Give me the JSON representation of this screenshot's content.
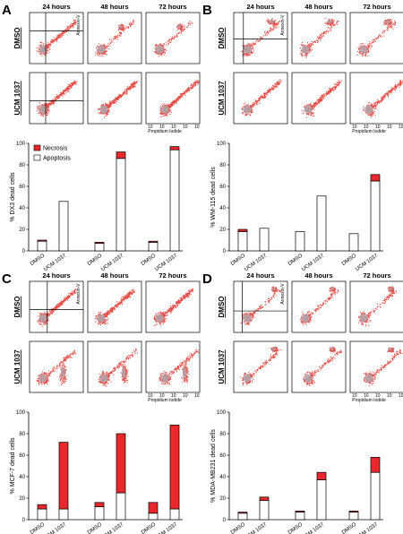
{
  "figure": {
    "time_labels": [
      "24 hours",
      "48 hours",
      "72 hours"
    ],
    "row_labels": [
      "DMSO",
      "UCM 1037"
    ],
    "flow_x_label": "Propidium Iodide",
    "flow_y_label": "Annexin-V",
    "flow_tick_labels": [
      "10",
      "10",
      "10",
      "10",
      "10"
    ],
    "legend": {
      "necrosis": "Necrosis",
      "apoptosis": "Apoptosis"
    },
    "colors": {
      "necrosis": "#e8282c",
      "apoptosis": "#ffffff",
      "dots": "#e23a32",
      "dense": "#a9b4bd"
    }
  },
  "chart_data": [
    {
      "type": "bar",
      "panel": "A",
      "stacked": true,
      "ylabel": "% DX3 dead cells",
      "ylim": [
        0,
        100
      ],
      "yticks": [
        0,
        20,
        40,
        60,
        80,
        100
      ],
      "categories": [
        "DMSO",
        "UCM 1037",
        "DMSO",
        "UCM 1037",
        "DMSO",
        "UCM 1037"
      ],
      "series": [
        {
          "name": "Apoptosis",
          "values": [
            9,
            46,
            7,
            86,
            8,
            94
          ]
        },
        {
          "name": "Necrosis",
          "values": [
            1,
            0,
            1,
            6,
            1,
            3
          ]
        }
      ],
      "legend_position": "top-left"
    },
    {
      "type": "bar",
      "panel": "B",
      "stacked": true,
      "ylabel": "% WM-115 dead cells",
      "ylim": [
        0,
        100
      ],
      "yticks": [
        0,
        20,
        40,
        60,
        80,
        100
      ],
      "categories": [
        "DMSO",
        "UCM 1037",
        "DMSO",
        "UCM 1037",
        "DMSO",
        "UCM 1037"
      ],
      "series": [
        {
          "name": "Apoptosis",
          "values": [
            18,
            21,
            18,
            51,
            16,
            65
          ]
        },
        {
          "name": "Necrosis",
          "values": [
            2,
            0,
            0,
            0,
            0,
            6
          ]
        }
      ]
    },
    {
      "type": "bar",
      "panel": "C",
      "stacked": true,
      "ylabel": "% MCF-7 dead cells",
      "ylim": [
        0,
        100
      ],
      "yticks": [
        0,
        20,
        40,
        60,
        80,
        100
      ],
      "categories": [
        "DMSO",
        "UCM 1037",
        "DMSO",
        "UCM 1037",
        "DMSO",
        "UCM 1037"
      ],
      "series": [
        {
          "name": "Apoptosis",
          "values": [
            10,
            10,
            12,
            25,
            6,
            10
          ]
        },
        {
          "name": "Necrosis",
          "values": [
            4,
            62,
            4,
            55,
            10,
            78
          ]
        }
      ]
    },
    {
      "type": "bar",
      "panel": "D",
      "stacked": true,
      "ylabel": "% MDA-MB231 dead cells",
      "ylim": [
        0,
        100
      ],
      "yticks": [
        0,
        20,
        40,
        60,
        80,
        100
      ],
      "categories": [
        "DMSO",
        "UCM 1037",
        "DMSO",
        "UCM 1037",
        "DMSO",
        "UCM 1037"
      ],
      "series": [
        {
          "name": "Apoptosis",
          "values": [
            6,
            18,
            7,
            37,
            7,
            44
          ]
        },
        {
          "name": "Necrosis",
          "values": [
            1,
            3,
            1,
            7,
            1,
            14
          ]
        }
      ]
    }
  ]
}
